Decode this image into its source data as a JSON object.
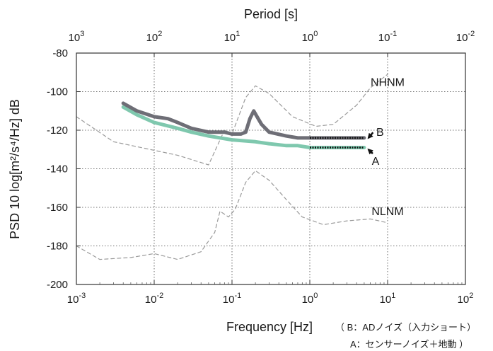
{
  "chart_data": {
    "type": "line",
    "top_axis_label": "Period [s]",
    "top_tick_labels": [
      "10^3",
      "10^2",
      "10^1",
      "10^0",
      "10^-1",
      "10^-2"
    ],
    "xlabel": "Frequency [Hz]",
    "ylabel": "PSD 10 log[m²/s⁴/Hz] dB",
    "x_scale": "log",
    "xlim": [
      0.001,
      100
    ],
    "ylim": [
      -200,
      -80
    ],
    "x_ticks": [
      0.001,
      0.01,
      0.1,
      1,
      10,
      100
    ],
    "x_tick_labels": [
      "10^-3",
      "10^-2",
      "10^-1",
      "10^0",
      "10^1",
      "10^2"
    ],
    "y_ticks": [
      -200,
      -180,
      -160,
      -140,
      -120,
      -100,
      -80
    ],
    "y_tick_labels": [
      "-200",
      "-180",
      "-160",
      "-140",
      "-120",
      "-100",
      "-80"
    ],
    "grid": true,
    "series": [
      {
        "name": "NHNM",
        "color": "#9a9a9a",
        "style": "dashed",
        "x": [
          0.001,
          0.003,
          0.02,
          0.05,
          0.08,
          0.1,
          0.15,
          0.2,
          0.3,
          0.6,
          1.2,
          2,
          4,
          6,
          10
        ],
        "y": [
          -113,
          -126,
          -133,
          -138,
          -120,
          -122,
          -103,
          -97,
          -101,
          -113,
          -118,
          -117,
          -107,
          -98,
          -91
        ]
      },
      {
        "name": "NLNM",
        "color": "#9a9a9a",
        "style": "dashed",
        "x": [
          0.001,
          0.002,
          0.005,
          0.01,
          0.02,
          0.04,
          0.06,
          0.07,
          0.09,
          0.11,
          0.15,
          0.2,
          0.3,
          0.5,
          0.8,
          1.5,
          3,
          6,
          10
        ],
        "y": [
          -180,
          -187,
          -186,
          -184,
          -187,
          -183,
          -173,
          -162,
          -165,
          -161,
          -147,
          -141,
          -146,
          -156,
          -165,
          -169,
          -167,
          -166,
          -168
        ]
      },
      {
        "name": "B",
        "color": "#6e6e76",
        "style": "thick",
        "x": [
          0.004,
          0.006,
          0.01,
          0.015,
          0.02,
          0.03,
          0.05,
          0.08,
          0.1,
          0.13,
          0.15,
          0.17,
          0.19,
          0.21,
          0.24,
          0.3,
          0.5,
          0.7,
          1,
          1.5,
          2,
          3,
          4,
          5
        ],
        "y": [
          -106,
          -110,
          -113,
          -114,
          -116,
          -119,
          -121,
          -121,
          -122,
          -122,
          -121,
          -114,
          -110,
          -113,
          -117,
          -121,
          -123,
          -124,
          -124,
          -124,
          -124,
          -124,
          -124,
          -124
        ]
      },
      {
        "name": "A",
        "color": "#7fc8ae",
        "style": "thick",
        "x": [
          0.004,
          0.006,
          0.01,
          0.02,
          0.03,
          0.05,
          0.1,
          0.2,
          0.3,
          0.5,
          0.7,
          1,
          1.5,
          2,
          3,
          4,
          5
        ],
        "y": [
          -108,
          -112,
          -116,
          -119,
          -121,
          -123,
          -125,
          -126,
          -127,
          -128,
          -128,
          -129,
          -129,
          -129,
          -129,
          -129,
          -129
        ]
      }
    ],
    "annotations": [
      {
        "label": "NHNM",
        "x": 10,
        "y": -97
      },
      {
        "label": "NLNM",
        "x": 10,
        "y": -164
      },
      {
        "label": "B",
        "x": 8,
        "y": -123,
        "arrow_to": [
          5,
          -124
        ]
      },
      {
        "label": "A",
        "x": 7,
        "y": -138,
        "arrow_to": [
          5,
          -130
        ]
      }
    ],
    "notes": [
      "（ B：ADノイズ（入力ショート）",
      "A：センサーノイズ＋地動 ）"
    ]
  }
}
